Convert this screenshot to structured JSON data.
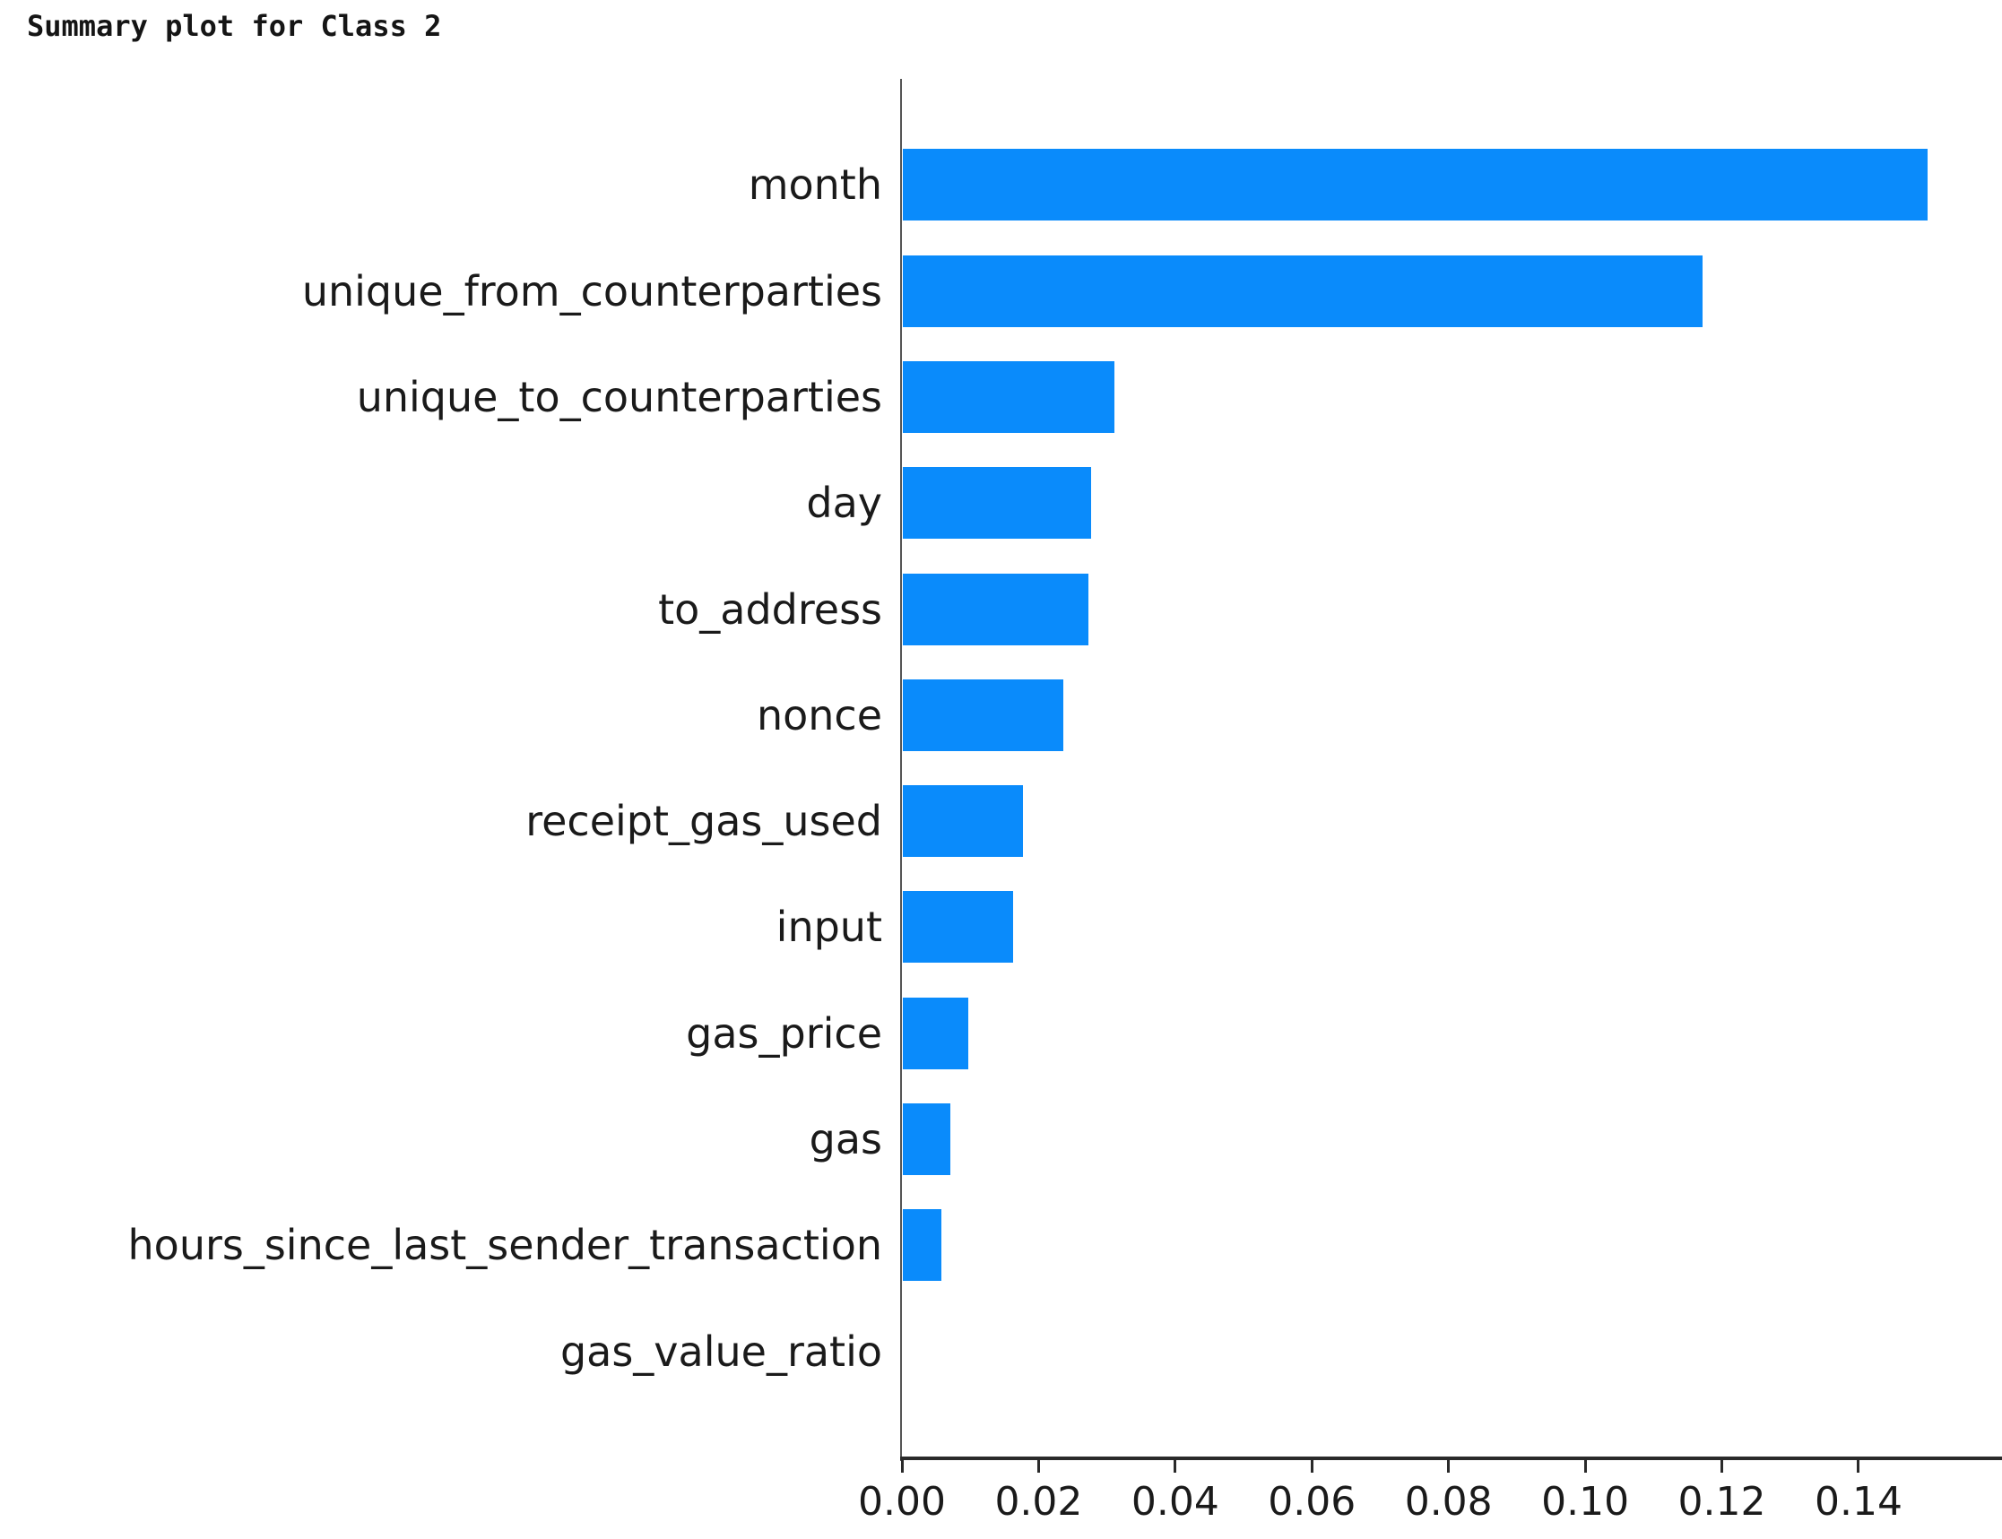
{
  "title": "Summary plot for Class 2",
  "chart_data": {
    "type": "bar",
    "orientation": "horizontal",
    "title": "Summary plot for Class 2",
    "categories": [
      "month",
      "unique_from_counterparties",
      "unique_to_counterparties",
      "day",
      "to_address",
      "nonce",
      "receipt_gas_used",
      "input",
      "gas_price",
      "gas",
      "hours_since_last_sender_transaction",
      "gas_value_ratio"
    ],
    "values": [
      0.15,
      0.117,
      0.031,
      0.0275,
      0.0272,
      0.0235,
      0.0176,
      0.0161,
      0.0096,
      0.007,
      0.0056,
      0.0
    ],
    "xlabel": "",
    "ylabel": "",
    "xlim": [
      0,
      0.161
    ],
    "x_ticks": [
      0.0,
      0.02,
      0.04,
      0.06,
      0.08,
      0.1,
      0.12,
      0.14
    ],
    "x_tick_labels": [
      "0.00",
      "0.02",
      "0.04",
      "0.06",
      "0.08",
      "0.10",
      "0.12",
      "0.14"
    ],
    "bar_color": "#0a8bfb",
    "axis_color": "#2a2a2a",
    "text_color": "#1a1a1a",
    "grid": false,
    "legend_position": "none"
  }
}
